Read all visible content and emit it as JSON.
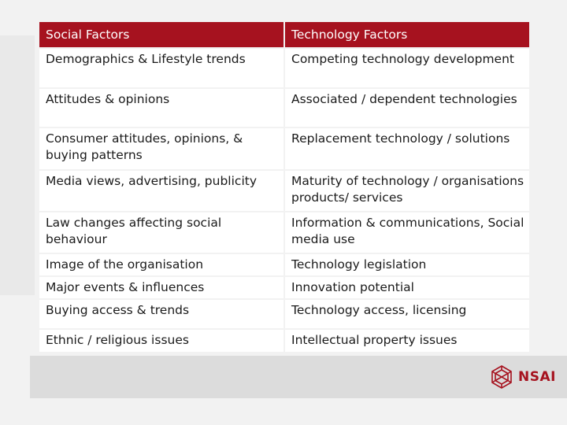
{
  "table": {
    "headers": [
      "Social Factors",
      "Technology Factors"
    ],
    "rows": [
      [
        "Demographics & Lifestyle trends",
        "Competing technology development"
      ],
      [
        "Attitudes & opinions",
        "Associated / dependent technologies"
      ],
      [
        "Consumer attitudes, opinions, & buying patterns",
        "Replacement technology / solutions"
      ],
      [
        "Media views, advertising, publicity",
        "Maturity of technology / organisations products/ services"
      ],
      [
        "Law changes affecting social behaviour",
        "Information & communications, Social media use"
      ],
      [
        "Image of the organisation",
        "Technology legislation"
      ],
      [
        "Major events & influences",
        "Innovation potential"
      ],
      [
        "Buying access & trends",
        "Technology access, licensing"
      ],
      [
        "Ethnic / religious issues",
        "Intellectual property issues"
      ]
    ]
  },
  "footer": {
    "logo_text": "NSAI",
    "logo_icon": "nsai-logo-icon",
    "brand_color": "#a6121f"
  }
}
